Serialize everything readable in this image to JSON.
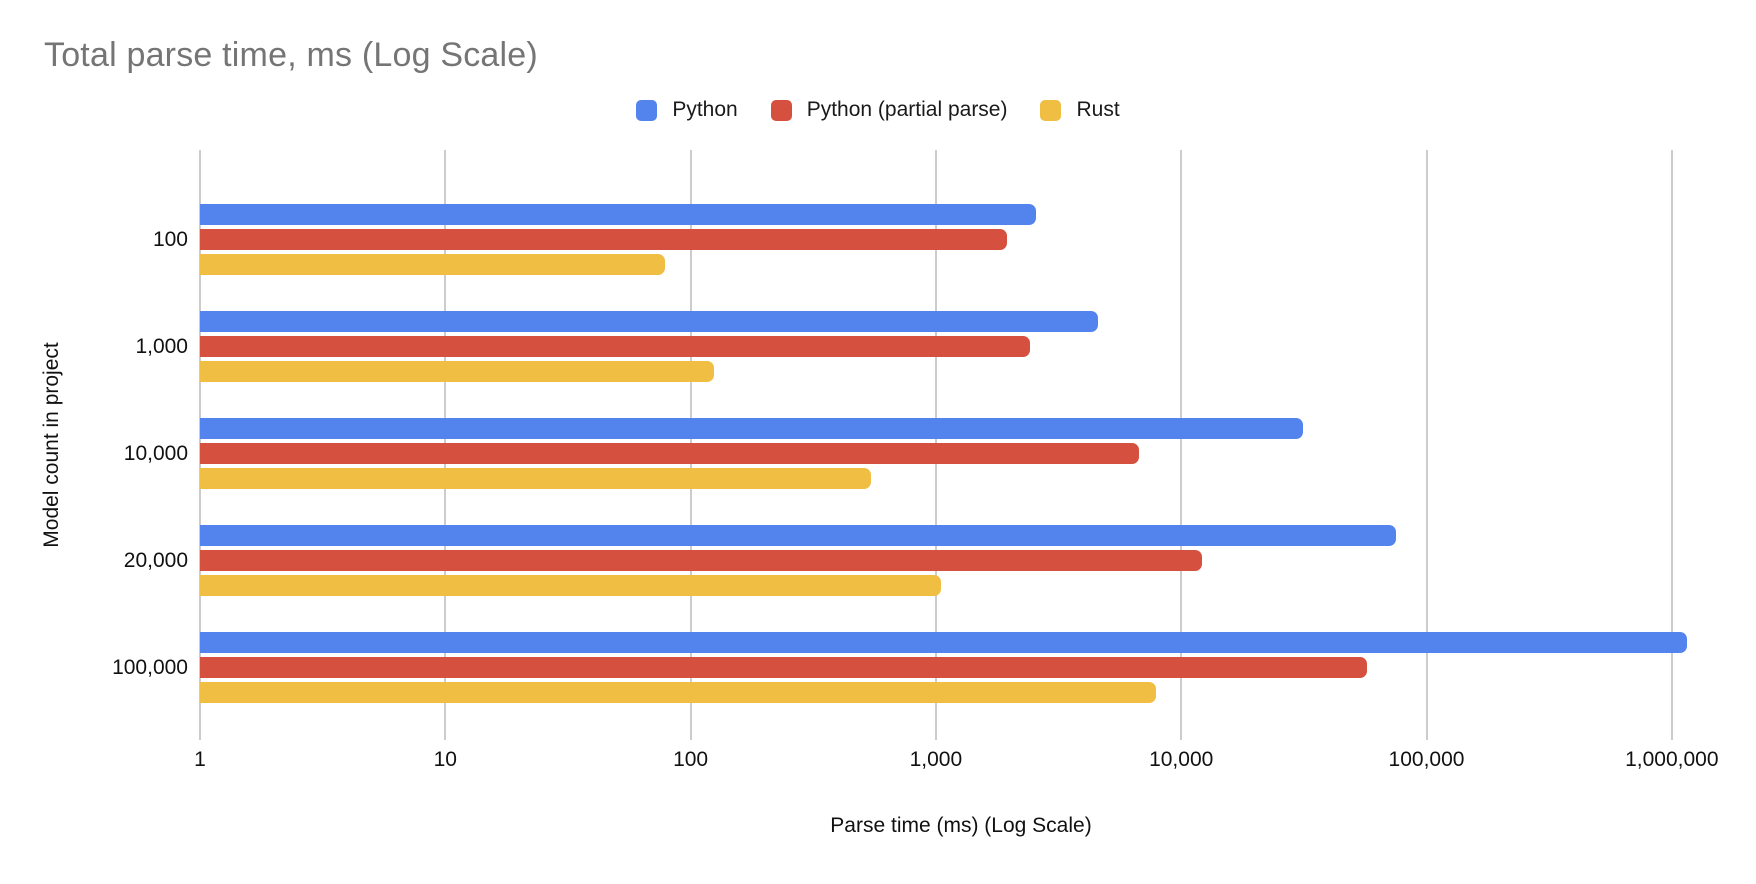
{
  "title": "Total parse time, ms (Log Scale)",
  "legend": [
    {
      "label": "Python",
      "color": "#5383EC"
    },
    {
      "label": "Python (partial parse)",
      "color": "#D5503E"
    },
    {
      "label": "Rust",
      "color": "#F0BE42"
    }
  ],
  "x_axis": {
    "title": "Parse time (ms) (Log Scale)",
    "ticks": [
      "1",
      "10",
      "100",
      "1,000",
      "10,000",
      "100,000",
      "1,000,000"
    ]
  },
  "y_axis": {
    "title": "Model count in project"
  },
  "colors": {
    "python": "#5383EC",
    "python_partial": "#D5503E",
    "rust": "#F0BE42",
    "gridline": "#CCCCCC",
    "title_text": "#757575",
    "axis_text": "#111111"
  },
  "chart_data": {
    "type": "bar",
    "orientation": "horizontal",
    "log_scale": true,
    "title": "Total parse time, ms (Log Scale)",
    "xlabel": "Parse time (ms) (Log Scale)",
    "ylabel": "Model count in project",
    "xlim": [
      1,
      1000000
    ],
    "grid": true,
    "legend_position": "top",
    "categories": [
      "100",
      "1,000",
      "10,000",
      "20,000",
      "100,000"
    ],
    "series": [
      {
        "name": "Python",
        "color": "#5383EC",
        "values": [
          2550,
          4600,
          31500,
          75000,
          1150000
        ]
      },
      {
        "name": "Python (partial parse)",
        "color": "#D5503E",
        "values": [
          1950,
          2430,
          6700,
          12100,
          57000
        ]
      },
      {
        "name": "Rust",
        "color": "#F0BE42",
        "values": [
          79,
          124,
          545,
          1050,
          7900
        ]
      }
    ]
  }
}
